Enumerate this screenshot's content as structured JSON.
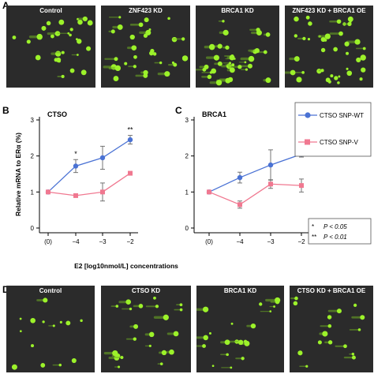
{
  "panel_a": {
    "letter": "A",
    "images": [
      {
        "label": "Control"
      },
      {
        "label": "ZNF423 KD"
      },
      {
        "label": "BRCA1 KD"
      },
      {
        "label": "ZNF423 KD + BRCA1 OE"
      }
    ]
  },
  "panel_d": {
    "letter": "D",
    "images": [
      {
        "label": "Control"
      },
      {
        "label": "CTSO KD"
      },
      {
        "label": "BRCA1 KD"
      },
      {
        "label": "CTSO KD + BRCA1 OE"
      }
    ]
  },
  "panel_b": {
    "letter": "B"
  },
  "panel_c": {
    "letter": "C"
  },
  "shared": {
    "ylabel": "Relative mRNA to ERα (%)",
    "xlabel": "E2 [log10nmol/L] concentrations",
    "legend": [
      {
        "name": "CTSO SNP-WT",
        "color": "#4a72d4",
        "marker": "circle"
      },
      {
        "name": "CTSO SNP-V",
        "color": "#f07890",
        "marker": "square"
      }
    ],
    "significance": [
      {
        "symbol": "*",
        "text": "P < 0.05"
      },
      {
        "symbol": "**",
        "text": "P < 0.01"
      }
    ]
  },
  "chart_data": [
    {
      "type": "line",
      "title": "CTSO",
      "categories": [
        "(0)",
        "−4",
        "−3",
        "−2"
      ],
      "ylim": [
        0,
        3
      ],
      "yticks": [
        0,
        1,
        2,
        3
      ],
      "ylabel": "Relative mRNA to ERα (%)",
      "series": [
        {
          "name": "CTSO SNP-WT",
          "values": [
            1.0,
            1.72,
            1.95,
            2.45
          ],
          "errors": [
            0,
            0.18,
            0.32,
            0.12
          ]
        },
        {
          "name": "CTSO SNP-V",
          "values": [
            1.0,
            0.9,
            1.0,
            1.52
          ],
          "errors": [
            0,
            0,
            0.25,
            0
          ]
        }
      ],
      "annotations": [
        {
          "category": "−4",
          "text": "*"
        },
        {
          "category": "−2",
          "text": "**"
        }
      ]
    },
    {
      "type": "line",
      "title": "BRCA1",
      "categories": [
        "(0)",
        "−4",
        "−3",
        "−2"
      ],
      "ylim": [
        0,
        3
      ],
      "yticks": [
        0,
        1,
        2,
        3
      ],
      "series": [
        {
          "name": "CTSO SNP-WT",
          "values": [
            1.0,
            1.4,
            1.75,
            2.05
          ],
          "errors": [
            0,
            0.15,
            0.42,
            0.08
          ]
        },
        {
          "name": "CTSO SNP-V",
          "values": [
            1.0,
            0.65,
            1.22,
            1.18
          ],
          "errors": [
            0,
            0.1,
            0.12,
            0.18
          ]
        }
      ],
      "annotations": [
        {
          "category": "−2",
          "text": "*"
        }
      ]
    }
  ]
}
